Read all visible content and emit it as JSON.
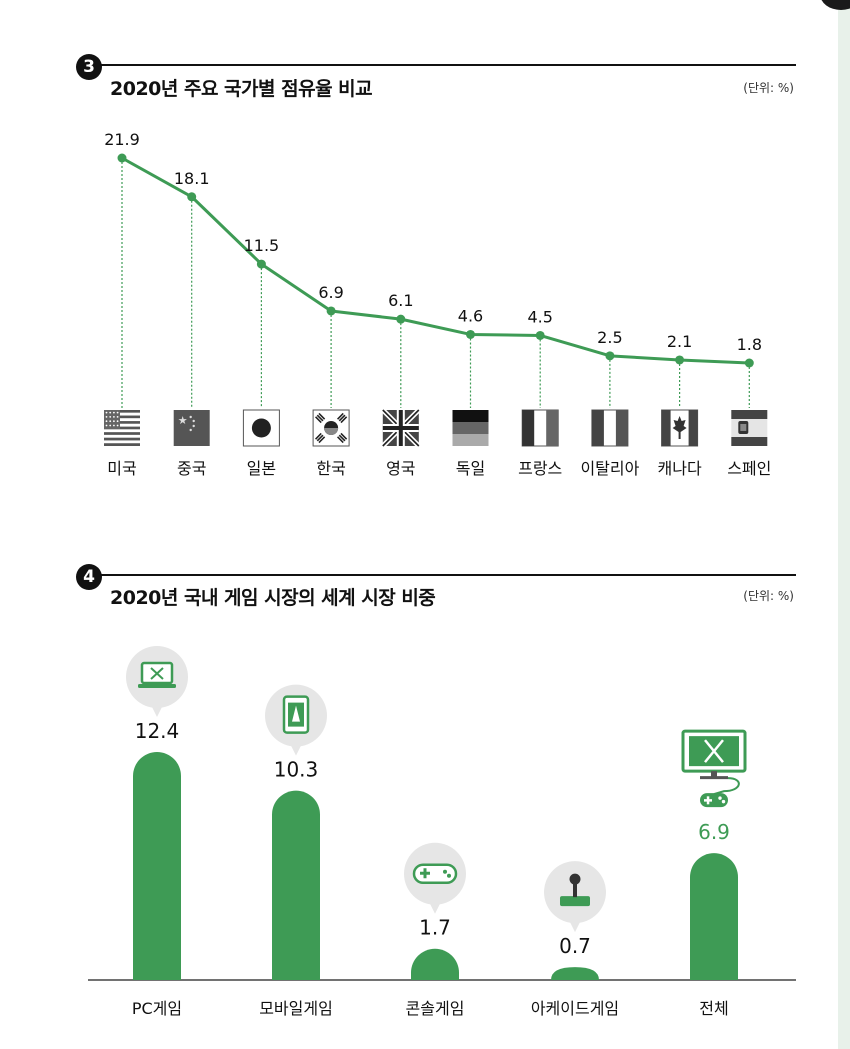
{
  "chart_data": [
    {
      "type": "line",
      "badge": "3",
      "title": "2020년 주요 국가별 점유율 비교",
      "unit": "(단위: %)",
      "categories": [
        "미국",
        "중국",
        "일본",
        "한국",
        "영국",
        "독일",
        "프랑스",
        "이탈리아",
        "캐나다",
        "스페인"
      ],
      "values": [
        21.9,
        18.1,
        11.5,
        6.9,
        6.1,
        4.6,
        4.5,
        2.5,
        2.1,
        1.8
      ],
      "value_labels": [
        "21.9",
        "18.1",
        "11.5",
        "6.9",
        "6.1",
        "4.6",
        "4.5",
        "2.5",
        "2.1",
        "1.8"
      ],
      "icons": [
        "flag-usa-icon",
        "flag-china-icon",
        "flag-japan-icon",
        "flag-korea-icon",
        "flag-uk-icon",
        "flag-germany-icon",
        "flag-france-icon",
        "flag-italy-icon",
        "flag-canada-icon",
        "flag-spain-icon"
      ],
      "ylim": [
        0,
        22
      ],
      "grid": false,
      "colors": {
        "line": "#3e9b55",
        "dropline": "#3e9b55"
      }
    },
    {
      "type": "bar",
      "badge": "4",
      "title": "2020년 국내 게임 시장의 세계 시장 비중",
      "unit": "(단위: %)",
      "categories": [
        "PC게임",
        "모바일게임",
        "콘솔게임",
        "아케이드게임",
        "전체"
      ],
      "values": [
        12.4,
        10.3,
        1.7,
        0.7,
        6.9
      ],
      "value_labels": [
        "12.4",
        "10.3",
        "1.7",
        "0.7",
        "6.9"
      ],
      "icons": [
        "laptop-game-icon",
        "smartphone-game-icon",
        "gamepad-icon",
        "joystick-icon",
        "monitor-gamepad-icon"
      ],
      "ylim": [
        0,
        12.4
      ],
      "grid": false,
      "colors": {
        "bar": "#3e9b55",
        "total_label": "#3e9b55",
        "label": "#111111",
        "icon_bubble": "#e6e6e6"
      }
    }
  ]
}
